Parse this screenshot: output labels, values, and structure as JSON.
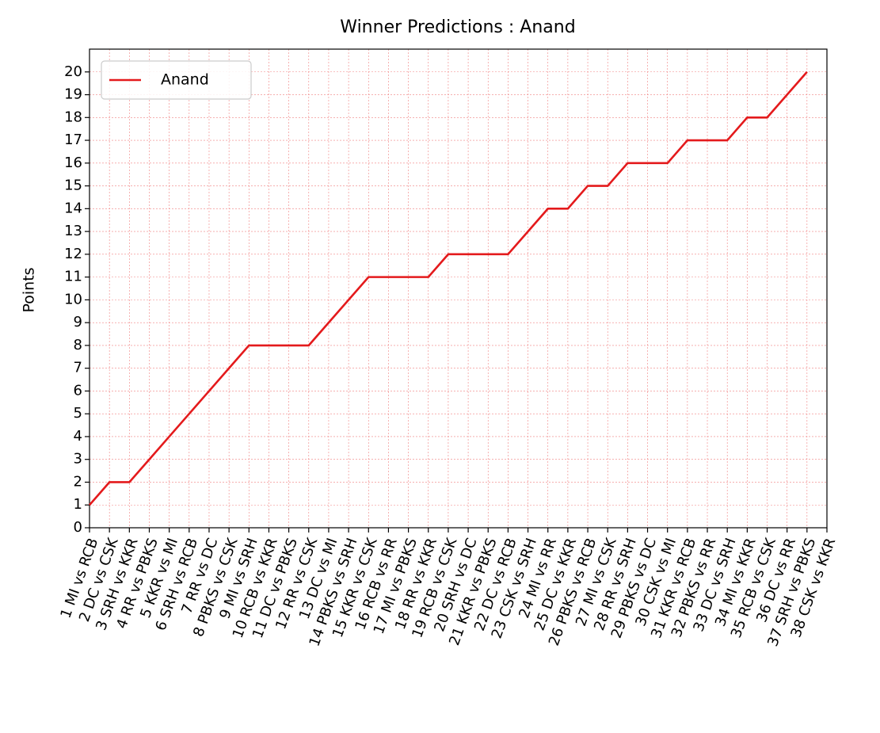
{
  "chart_data": {
    "type": "line",
    "title": "Winner Predictions : Anand",
    "y_label": "Points",
    "categories": [
      "1 MI vs RCB",
      "2 DC vs CSK",
      "3 SRH vs KKR",
      "4 RR vs PBKS",
      "5 KKR vs MI",
      "6 SRH vs RCB",
      "7 RR vs DC",
      "8 PBKS vs CSK",
      "9 MI vs SRH",
      "10 RCB vs KKR",
      "11 DC vs PBKS",
      "12 RR vs CSK",
      "13 DC vs MI",
      "14 PBKS vs SRH",
      "15 KKR vs CSK",
      "16 RCB vs RR",
      "17 MI vs PBKS",
      "18 RR vs KKR",
      "19 RCB vs CSK",
      "20 SRH vs DC",
      "21 KKR vs PBKS",
      "22 DC vs RCB",
      "23 CSK vs SRH",
      "24 MI vs RR",
      "25 DC vs KKR",
      "26 PBKS vs RCB",
      "27 MI vs CSK",
      "28 RR vs SRH",
      "29 PBKS vs DC",
      "30 CSK vs MI",
      "31 KKR vs RCB",
      "32 PBKS vs RR",
      "33 DC vs SRH",
      "34 MI vs KKR",
      "35 RCB vs CSK",
      "36 DC vs RR",
      "37 SRH vs PBKS",
      "38 CSK vs KKR"
    ],
    "series": [
      {
        "name": "Anand",
        "color": "#e41a1c",
        "values": [
          1,
          2,
          2,
          3,
          4,
          5,
          6,
          7,
          8,
          8,
          8,
          8,
          9,
          10,
          11,
          11,
          11,
          11,
          12,
          12,
          12,
          12,
          13,
          14,
          14,
          15,
          15,
          16,
          16,
          16,
          17,
          17,
          17,
          18,
          18,
          19,
          20,
          null
        ]
      }
    ],
    "ylim": [
      0,
      21
    ],
    "yticks": [
      0,
      1,
      2,
      3,
      4,
      5,
      6,
      7,
      8,
      9,
      10,
      11,
      12,
      13,
      14,
      15,
      16,
      17,
      18,
      19,
      20
    ],
    "grid": true,
    "legend": "upper left"
  }
}
